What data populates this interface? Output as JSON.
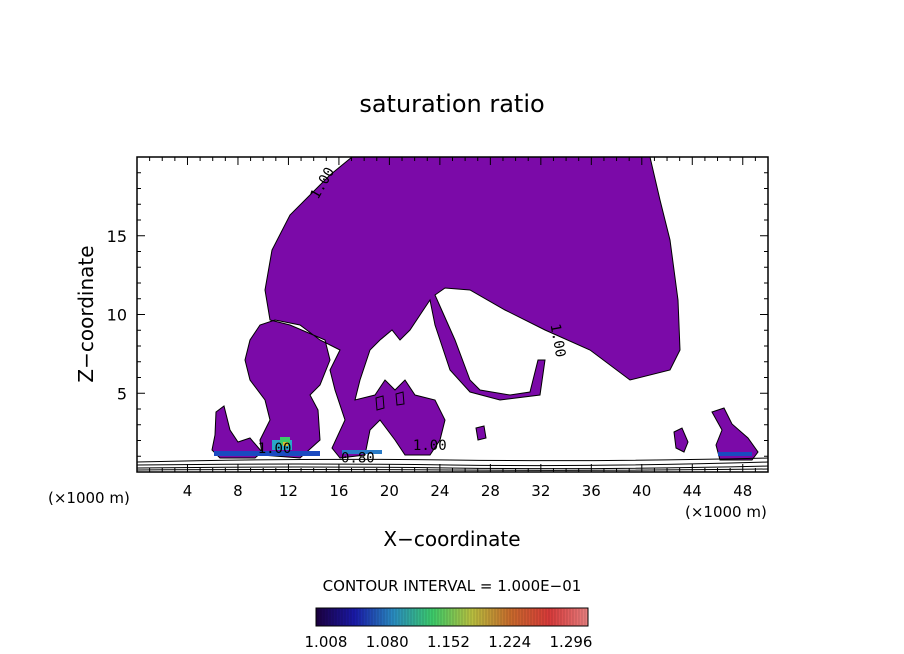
{
  "chart_data": {
    "type": "contour",
    "title": "saturation ratio",
    "xlabel": "X−coordinate",
    "ylabel": "Z−coordinate",
    "x_unit_left": "(×1000 m)",
    "x_unit_right": "(×1000 m)",
    "xlim": [
      0,
      50
    ],
    "ylim": [
      0,
      20
    ],
    "x_ticks": [
      4,
      8,
      12,
      16,
      20,
      24,
      28,
      32,
      36,
      40,
      44,
      48
    ],
    "y_ticks": [
      5,
      10,
      15
    ],
    "contour_labels": [
      {
        "text": "1.00",
        "x": 15,
        "y": 18.2,
        "angle": -60
      },
      {
        "text": "1.00",
        "x": 33,
        "y": 8.3,
        "angle": 80
      },
      {
        "text": "1.00",
        "x": 10.9,
        "y": 1.2,
        "angle": 0
      },
      {
        "text": "0.80",
        "x": 17.5,
        "y": 0.6,
        "angle": 0
      },
      {
        "text": "1.00",
        "x": 23.2,
        "y": 1.4,
        "angle": 0
      }
    ],
    "contour_interval_label": "CONTOUR INTERVAL = 1.000E−01",
    "colorbar": {
      "tick_labels": [
        "1.008",
        "1.080",
        "1.152",
        "1.224",
        "1.296"
      ],
      "colors": [
        "#1c0040",
        "#1a1aa8",
        "#2a8cc0",
        "#3ccb6a",
        "#b8c040",
        "#c86b2c",
        "#d83a3a",
        "#e88080"
      ]
    },
    "fill_color": "#7b0aa8"
  }
}
